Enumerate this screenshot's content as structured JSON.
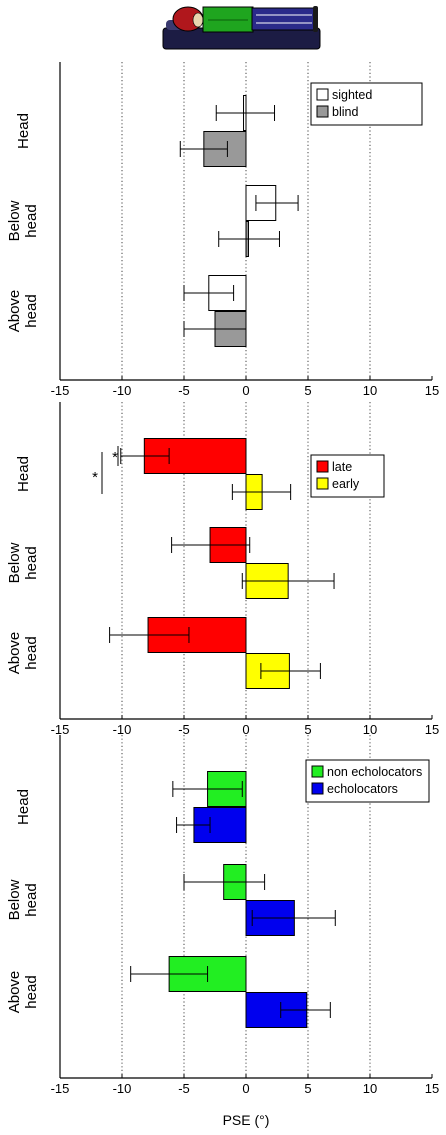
{
  "illustration": {
    "name": "lying-person-on-bed",
    "colors": {
      "head": "#b0171c",
      "torso": "#1fa51f",
      "legs": "#2a2a8a",
      "bed": "#1c1c44"
    }
  },
  "xlabel": "PSE (°)",
  "xticks": [
    -15,
    -10,
    -5,
    0,
    5,
    10,
    15
  ],
  "chart_data": [
    {
      "type": "bar",
      "orientation": "horizontal",
      "xlim": [
        -15,
        15
      ],
      "grid": "vertical-dotted",
      "legend_position": "top-right",
      "categories": [
        "Head",
        "Below head",
        "Above head"
      ],
      "category_lines": [
        [
          "Head"
        ],
        [
          "Below",
          "head"
        ],
        [
          "Above",
          "head"
        ]
      ],
      "series": [
        {
          "name": "sighted",
          "color": "#ffffff",
          "values": [
            -0.2,
            2.4,
            -3.0
          ],
          "err_low": [
            -2.4,
            0.8,
            -5.0
          ],
          "err_high": [
            2.3,
            4.2,
            -1.0
          ]
        },
        {
          "name": "blind",
          "color": "#999999",
          "values": [
            -3.4,
            0.2,
            -2.5
          ],
          "err_low": [
            -5.3,
            -2.2,
            -5.0
          ],
          "err_high": [
            -1.5,
            2.7,
            0.0
          ]
        }
      ]
    },
    {
      "type": "bar",
      "orientation": "horizontal",
      "xlim": [
        -15,
        15
      ],
      "grid": "vertical-dotted",
      "legend_position": "top-right",
      "categories": [
        "Head",
        "Below head",
        "Above head"
      ],
      "category_lines": [
        [
          "Head"
        ],
        [
          "Below",
          "head"
        ],
        [
          "Above",
          "head"
        ]
      ],
      "series": [
        {
          "name": "late",
          "color": "#ff0000",
          "values": [
            -8.2,
            -2.9,
            -7.9
          ],
          "err_low": [
            -10.1,
            -6.0,
            -11.0
          ],
          "err_high": [
            -6.2,
            0.3,
            -4.6
          ]
        },
        {
          "name": "early",
          "color": "#ffff00",
          "values": [
            1.3,
            3.4,
            3.5
          ],
          "err_low": [
            -1.1,
            -0.3,
            1.2
          ],
          "err_high": [
            3.6,
            7.1,
            6.0
          ]
        }
      ],
      "annotations": [
        "*",
        "*"
      ]
    },
    {
      "type": "bar",
      "orientation": "horizontal",
      "xlim": [
        -15,
        15
      ],
      "grid": "vertical-dotted",
      "legend_position": "top-right",
      "categories": [
        "Head",
        "Below head",
        "Above head"
      ],
      "category_lines": [
        [
          "Head"
        ],
        [
          "Below",
          "head"
        ],
        [
          "Above",
          "head"
        ]
      ],
      "series": [
        {
          "name": "non echolocators",
          "color": "#22ee22",
          "values": [
            -3.1,
            -1.8,
            -6.2
          ],
          "err_low": [
            -5.9,
            -5.0,
            -9.3
          ],
          "err_high": [
            -0.3,
            1.5,
            -3.1
          ]
        },
        {
          "name": "echolocators",
          "color": "#0000ee",
          "values": [
            -4.2,
            3.9,
            4.9
          ],
          "err_low": [
            -5.6,
            0.5,
            2.8
          ],
          "err_high": [
            -2.9,
            7.2,
            6.8
          ]
        }
      ]
    }
  ]
}
